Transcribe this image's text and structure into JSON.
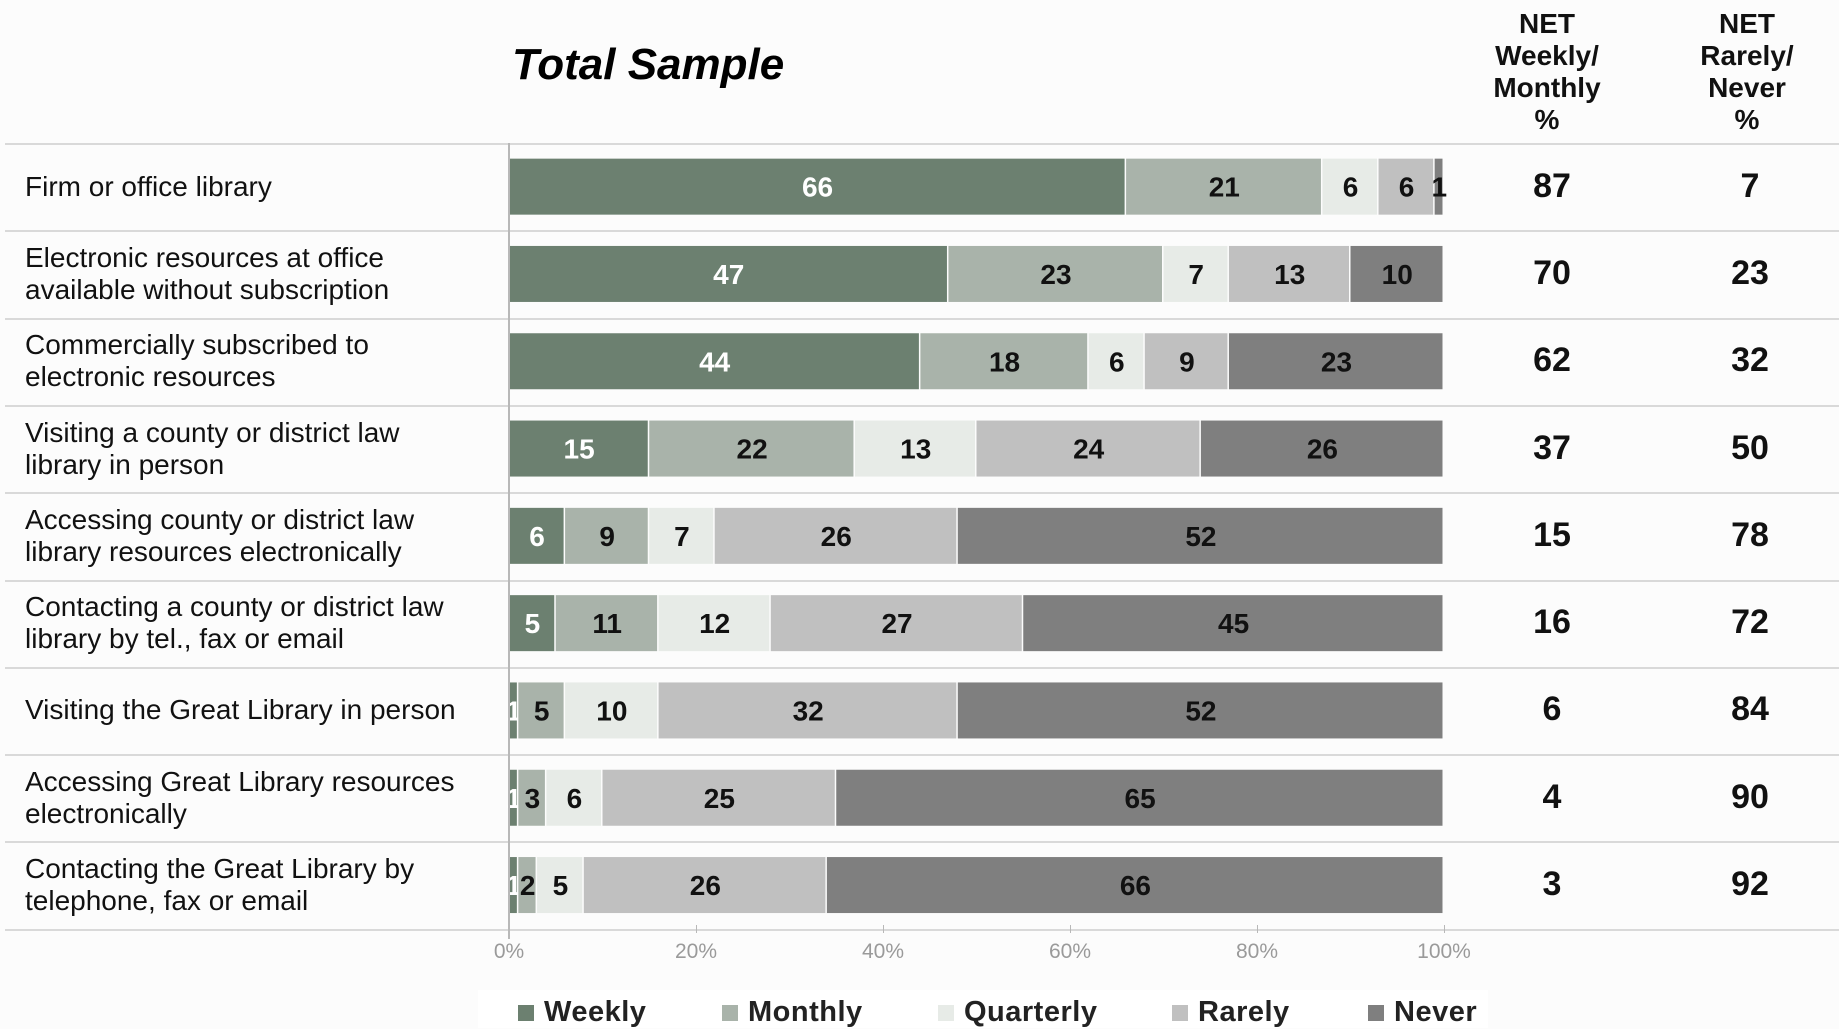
{
  "title": "Total Sample",
  "net_headers": {
    "weekly_monthly": [
      "NET",
      "Weekly/",
      "Monthly",
      "%"
    ],
    "rarely_never": [
      "NET",
      "Rarely/",
      "Never",
      "%"
    ]
  },
  "colors": {
    "Weekly": "#6c8070",
    "Monthly": "#a9b3aa",
    "Quarterly": "#e7ebe7",
    "Rarely": "#c0c0c0",
    "Never": "#7f7f7f"
  },
  "label_colors": {
    "Weekly": "#ffffff",
    "Monthly": "#111111",
    "Quarterly": "#111111",
    "Rarely": "#111111",
    "Never": "#111111"
  },
  "chart_data": {
    "type": "bar",
    "orientation": "horizontal",
    "stacked": true,
    "percent": true,
    "title": "Total Sample",
    "categories": [
      [
        "Firm or office library"
      ],
      [
        "Electronic resources at office",
        "available without subscription"
      ],
      [
        "Commercially subscribed to",
        "electronic resources"
      ],
      [
        "Visiting a county or district law",
        "library in person"
      ],
      [
        "Accessing county or district law",
        "library resources electronically"
      ],
      [
        "Contacting a county or district law",
        "library by tel., fax or email"
      ],
      [
        "Visiting the Great Library in person"
      ],
      [
        "Accessing Great Library resources",
        "electronically"
      ],
      [
        "Contacting the Great Library by",
        "telephone, fax or email"
      ]
    ],
    "series": [
      {
        "name": "Weekly",
        "values": [
          66,
          47,
          44,
          15,
          6,
          5,
          1,
          1,
          1
        ]
      },
      {
        "name": "Monthly",
        "values": [
          21,
          23,
          18,
          22,
          9,
          11,
          5,
          3,
          2
        ]
      },
      {
        "name": "Quarterly",
        "values": [
          6,
          7,
          6,
          13,
          7,
          12,
          10,
          6,
          5
        ]
      },
      {
        "name": "Rarely",
        "values": [
          6,
          13,
          9,
          24,
          26,
          27,
          32,
          25,
          26
        ]
      },
      {
        "name": "Never",
        "values": [
          1,
          10,
          23,
          26,
          52,
          45,
          52,
          65,
          66
        ]
      }
    ],
    "net_weekly_monthly": [
      87,
      70,
      62,
      37,
      15,
      16,
      6,
      4,
      3
    ],
    "net_rarely_never": [
      7,
      23,
      32,
      50,
      78,
      72,
      84,
      90,
      92
    ],
    "x_ticks": [
      "0%",
      "20%",
      "40%",
      "60%",
      "80%",
      "100%"
    ],
    "xlim": [
      0,
      100
    ],
    "legend": {
      "position": "bottom",
      "entries": [
        "Weekly",
        "Monthly",
        "Quarterly",
        "Rarely",
        "Never"
      ]
    }
  }
}
